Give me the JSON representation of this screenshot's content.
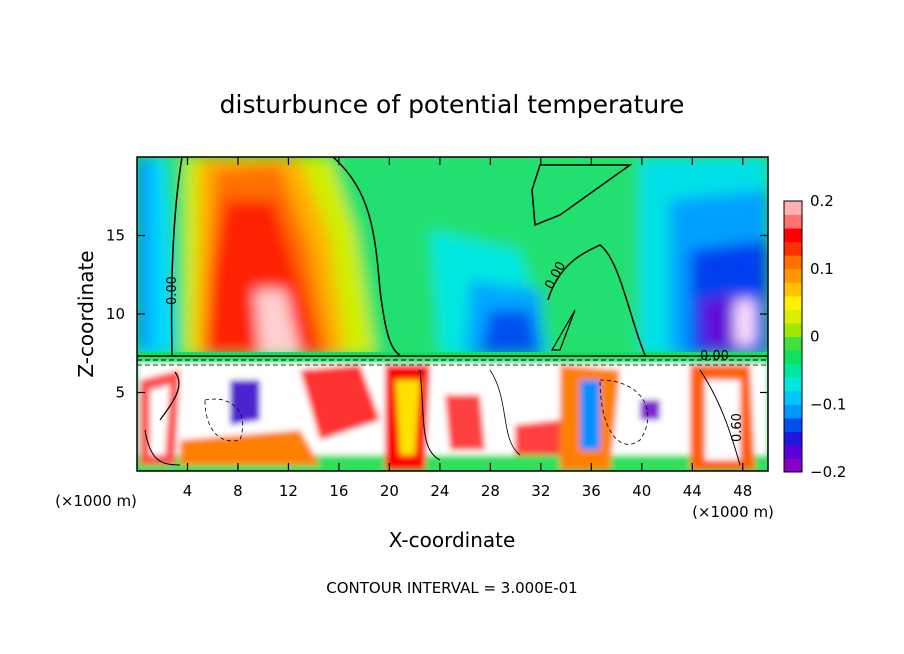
{
  "chart_data": {
    "type": "heatmap",
    "title": "disturbunce of potential temperature",
    "xlabel": "X-coordinate",
    "ylabel": "Z-coordinate",
    "x_unit": "(×1000 m)",
    "xlim": [
      0,
      50
    ],
    "ylim": [
      0,
      20
    ],
    "x_ticks": [
      4,
      8,
      12,
      16,
      20,
      24,
      28,
      32,
      36,
      40,
      44,
      48
    ],
    "y_ticks": [
      5,
      10,
      15
    ],
    "colorbar": {
      "min": -0.2,
      "max": 0.2,
      "ticks": [
        0.2,
        0.1,
        0,
        -0.1,
        -0.2
      ],
      "tick_labels": [
        "0.2",
        "0.1",
        "0",
        "−0.1",
        "−0.2"
      ],
      "colors": [
        "#8a00c8",
        "#5a00d8",
        "#2018e0",
        "#0050f0",
        "#0098ff",
        "#00c8ff",
        "#00e8e0",
        "#00e8a0",
        "#10e060",
        "#40e040",
        "#a0e800",
        "#d8f000",
        "#fff000",
        "#ffc000",
        "#ff9800",
        "#ff7000",
        "#ff3000",
        "#ff0000",
        "#ff7070",
        "#ffb0b0"
      ]
    },
    "contour_labels": [
      "0.00",
      "0.00",
      "0.00",
      "0.60"
    ],
    "footer": "CONTOUR INTERVAL = 3.000E-01"
  }
}
